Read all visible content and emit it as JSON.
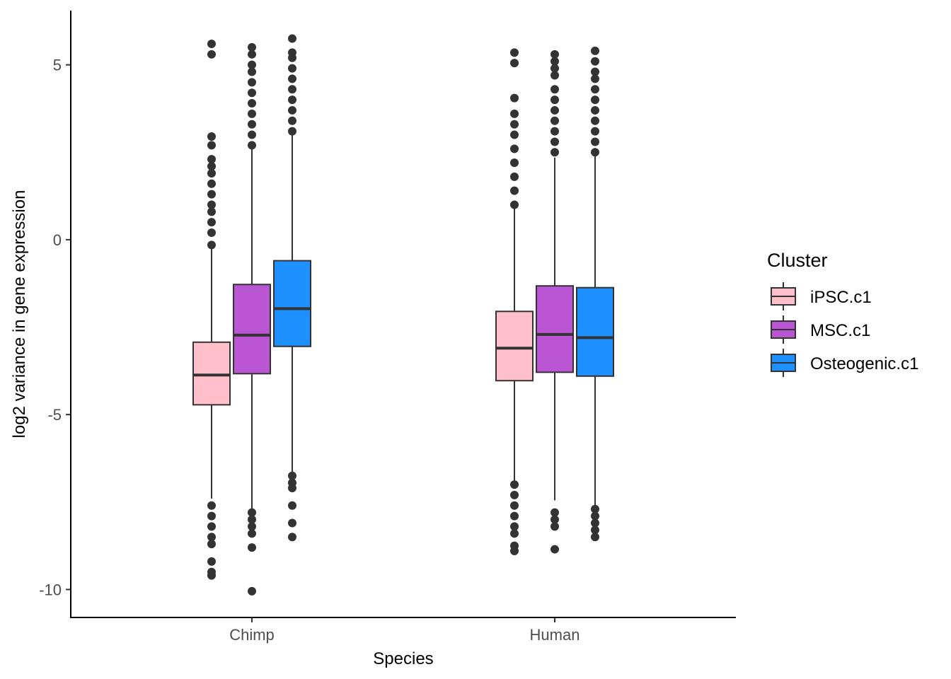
{
  "chart_data": {
    "type": "boxplot",
    "title": "",
    "xlabel": "Species",
    "ylabel": "log2 variance in gene expression",
    "categories": [
      "Chimp",
      "Human"
    ],
    "ylim": [
      -10.8,
      6.55
    ],
    "yticks": [
      5,
      0,
      -5,
      -10
    ],
    "ytick_labels": [
      "5",
      "0",
      "-5",
      "-10"
    ],
    "grid": false,
    "legend": {
      "title": "Cluster",
      "position": "right",
      "entries": [
        "iPSC.c1",
        "MSC.c1",
        "Osteogenic.c1"
      ]
    },
    "series": [
      {
        "name": "iPSC.c1",
        "color": "#FFC0CB",
        "boxes": [
          {
            "category": "Chimp",
            "q1": -4.72,
            "median": -3.87,
            "q3": -2.93,
            "whisker_low": -7.4,
            "whisker_high": -0.2,
            "outliers": [
              -0.15,
              0.2,
              0.5,
              0.8,
              1.0,
              1.3,
              1.6,
              1.9,
              2.1,
              2.3,
              2.7,
              2.95,
              5.3,
              5.6,
              -7.6,
              -7.9,
              -8.2,
              -8.5,
              -8.7,
              -9.2,
              -9.5,
              -9.6
            ]
          },
          {
            "category": "Human",
            "q1": -4.03,
            "median": -3.1,
            "q3": -2.05,
            "whisker_low": -6.95,
            "whisker_high": 0.95,
            "outliers": [
              1.0,
              1.4,
              1.8,
              2.2,
              2.6,
              3.0,
              3.3,
              3.6,
              4.05,
              5.05,
              5.35,
              -7.0,
              -7.3,
              -7.6,
              -7.9,
              -8.2,
              -8.4,
              -8.75,
              -8.9
            ]
          }
        ]
      },
      {
        "name": "MSC.c1",
        "color": "#BA55D3",
        "boxes": [
          {
            "category": "Chimp",
            "q1": -3.83,
            "median": -2.73,
            "q3": -1.28,
            "whisker_low": -7.7,
            "whisker_high": 2.6,
            "outliers": [
              2.7,
              3.0,
              3.3,
              3.6,
              3.9,
              4.2,
              4.5,
              4.8,
              5.0,
              5.3,
              5.5,
              -7.8,
              -8.0,
              -8.2,
              -8.4,
              -8.8,
              -10.05
            ]
          },
          {
            "category": "Human",
            "q1": -3.79,
            "median": -2.71,
            "q3": -1.32,
            "whisker_low": -7.45,
            "whisker_high": 2.35,
            "outliers": [
              2.5,
              2.8,
              3.1,
              3.4,
              3.7,
              4.0,
              4.3,
              4.7,
              4.9,
              5.1,
              5.3,
              -7.8,
              -8.0,
              -8.2,
              -8.85
            ]
          }
        ]
      },
      {
        "name": "Osteogenic.c1",
        "color": "#1E90FF",
        "boxes": [
          {
            "category": "Chimp",
            "q1": -3.05,
            "median": -1.97,
            "q3": -0.6,
            "whisker_low": -6.7,
            "whisker_high": 3.05,
            "outliers": [
              3.1,
              3.4,
              3.7,
              4.0,
              4.3,
              4.6,
              4.9,
              5.2,
              5.35,
              5.75,
              -6.75,
              -6.95,
              -7.1,
              -7.6,
              -8.1,
              -8.5
            ]
          },
          {
            "category": "Human",
            "q1": -3.9,
            "median": -2.8,
            "q3": -1.37,
            "whisker_low": -7.6,
            "whisker_high": 2.45,
            "outliers": [
              2.5,
              2.8,
              3.1,
              3.4,
              3.7,
              4.0,
              4.3,
              4.6,
              4.8,
              5.1,
              5.4,
              -7.7,
              -7.9,
              -8.1,
              -8.3,
              -8.5
            ]
          }
        ]
      }
    ]
  }
}
